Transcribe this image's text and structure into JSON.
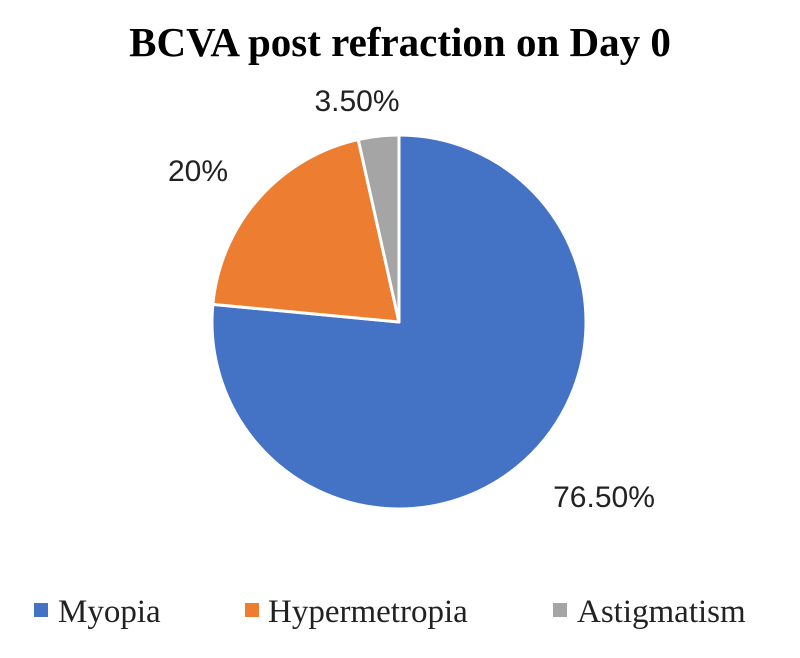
{
  "chart_data": {
    "type": "pie",
    "title": "BCVA post refraction on Day 0",
    "slices": [
      {
        "name": "Myopia",
        "value": 76.5,
        "label": "76.50%",
        "color": "#4472C4"
      },
      {
        "name": "Hypermetropia",
        "value": 20,
        "label": "20%",
        "color": "#ED7D31"
      },
      {
        "name": "Astigmatism",
        "value": 3.5,
        "label": "3.50%",
        "color": "#A5A5A5"
      }
    ],
    "legend_position": "bottom",
    "start_angle": "12 o'clock, clockwise"
  }
}
